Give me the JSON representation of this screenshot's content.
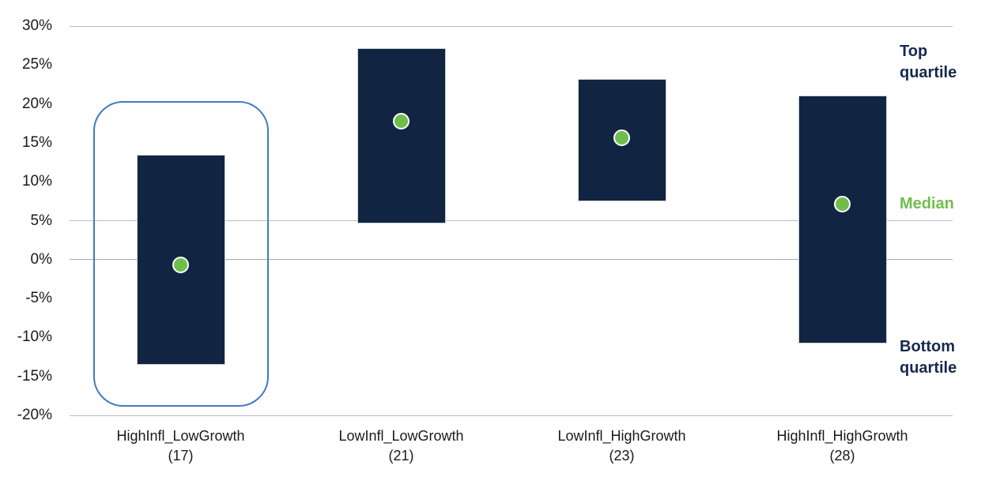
{
  "chart_data": {
    "type": "bar",
    "subtype": "floating-quartile-range-with-median-dot",
    "title": "",
    "xlabel": "",
    "ylabel": "",
    "unit": "%",
    "categories": [
      "HighInfl_LowGrowth",
      "LowInfl_LowGrowth",
      "LowInfl_HighGrowth",
      "HighInfl_HighGrowth"
    ],
    "category_count_labels": [
      "(17)",
      "(21)",
      "(23)",
      "(28)"
    ],
    "series": [
      {
        "name": "Top quartile",
        "values": [
          13.5,
          27.2,
          23.2,
          21.1
        ]
      },
      {
        "name": "Bottom quartile",
        "values": [
          -13.5,
          4.6,
          7.5,
          -10.8
        ]
      },
      {
        "name": "Median",
        "values": [
          -0.7,
          17.8,
          15.6,
          7.1
        ]
      }
    ],
    "ylim": [
      -20,
      30
    ],
    "ytick_labels": [
      "30%",
      "25%",
      "20%",
      "15%",
      "10%",
      "5%",
      "0%",
      "-5%",
      "-10%",
      "-15%",
      "-20%"
    ],
    "ytick_values": [
      30,
      25,
      20,
      15,
      10,
      5,
      0,
      -5,
      -10,
      -15,
      -20
    ],
    "gridlines_at": [
      30,
      5,
      -20
    ],
    "zero_line": true,
    "grid": "partial-horizontal",
    "legend_position": "right-annotations",
    "highlighted_category_index": 0
  },
  "annotations": {
    "top_quartile": "Top quartile",
    "median": "Median",
    "bottom_quartile": "Bottom quartile"
  },
  "colors": {
    "background": "#FFFFFF",
    "bar_fill": "#112442",
    "bar_edge": "#CDD3DB",
    "median_dot_fill": "#6FBE4C",
    "median_dot_edge": "#FFFFFF",
    "highlight_ring": "#3E7CC1",
    "gridline": "#BCBCBC",
    "zero_line": "#A8A8A8",
    "tick_text": "#1A1A1A",
    "quartile_annotation_text": "#16294E",
    "median_annotation_text": "#6FBE4C"
  }
}
